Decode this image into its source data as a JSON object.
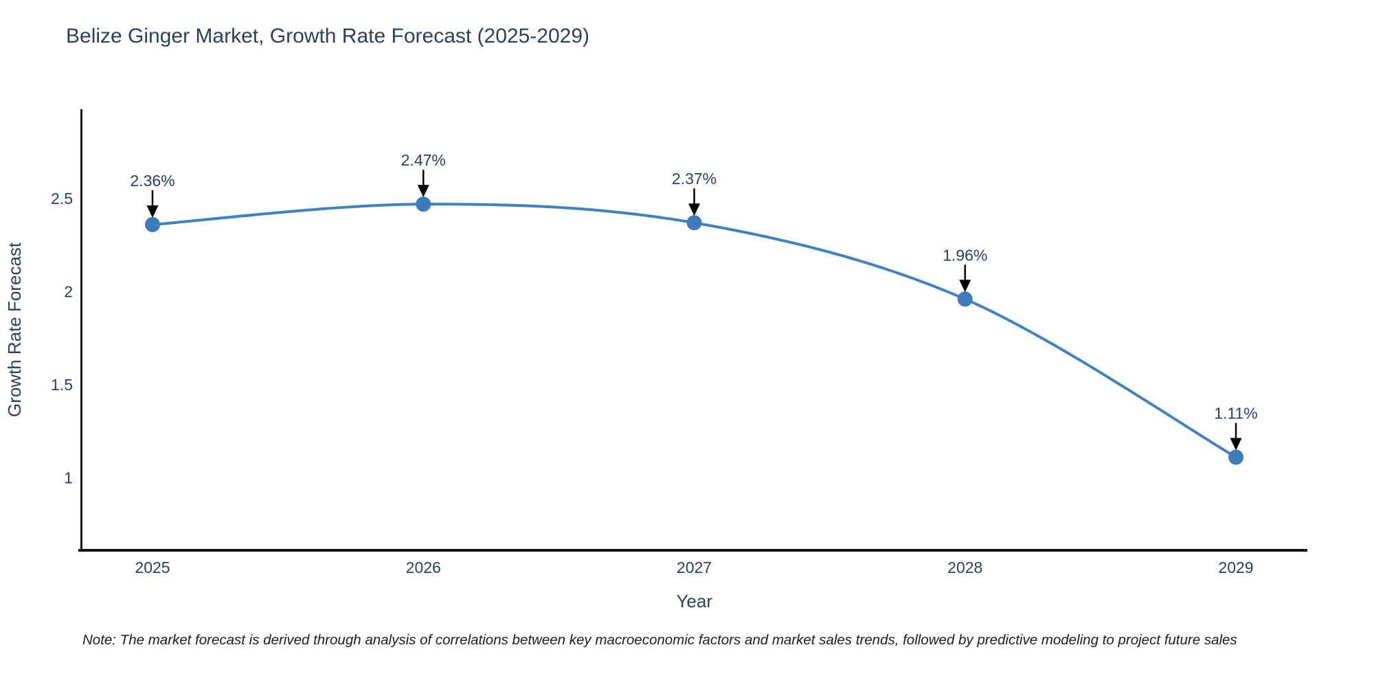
{
  "title": "Belize Ginger Market, Growth Rate Forecast (2025-2029)",
  "note": "Note: The market forecast is derived through analysis of correlations between key macroeconomic factors and market sales trends, followed by predictive modeling to project future sales",
  "chart_data": {
    "type": "line",
    "title": "Belize Ginger Market, Growth Rate Forecast (2025-2029)",
    "x": [
      2025,
      2026,
      2027,
      2028,
      2029
    ],
    "x_tick_labels": [
      "2025",
      "2026",
      "2027",
      "2028",
      "2029"
    ],
    "series": [
      {
        "name": "Growth Rate Forecast",
        "values": [
          2.36,
          2.47,
          2.37,
          1.96,
          1.11
        ],
        "point_labels": [
          "2.36%",
          "2.47%",
          "2.37%",
          "1.96%",
          "1.11%"
        ]
      }
    ],
    "xlabel": "Year",
    "ylabel": "Growth Rate Forecast",
    "y_ticks": [
      1,
      1.5,
      2,
      2.5
    ],
    "y_tick_labels": [
      "1",
      "1.5",
      "2",
      "2.5"
    ],
    "y_range": [
      0.61,
      2.98
    ],
    "line_shape": "spline",
    "grid": false,
    "legend_position": "none",
    "colors": {
      "line": "#4181c2",
      "marker": "#3c7cba",
      "axis": "#111111",
      "tick_text": "#2a3f5f",
      "annotation_text": "#2a3f5f",
      "annotation_arrow": "#000000",
      "title_text": "#2b3f5e"
    }
  }
}
